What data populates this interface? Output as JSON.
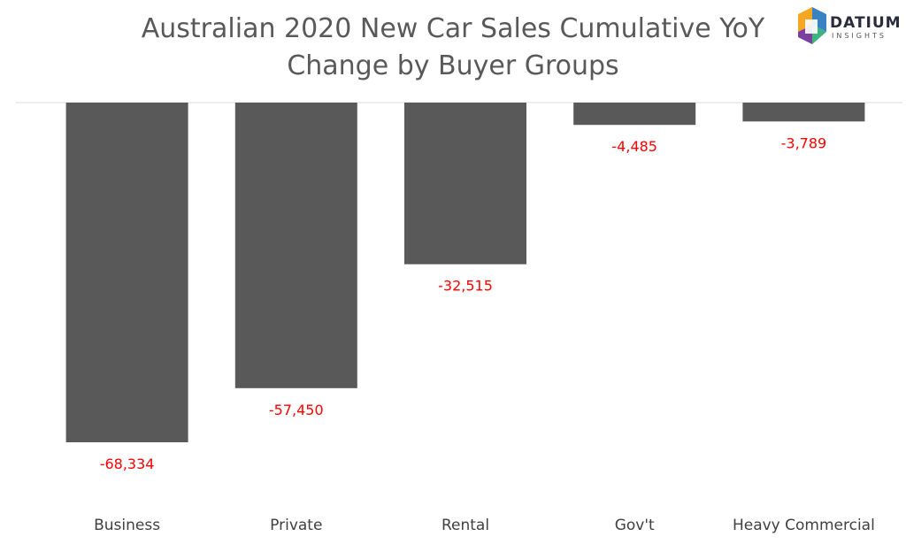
{
  "chart_data": {
    "type": "bar",
    "title_lines": [
      "Australian 2020 New Car Sales Cumulative YoY",
      "Change by Buyer Groups"
    ],
    "categories": [
      "Business",
      "Private",
      "Rental",
      "Gov't",
      "Heavy Commercial"
    ],
    "values": [
      -68334,
      -57450,
      -32515,
      -4485,
      -3789
    ],
    "data_labels": [
      "-68,334",
      "-57,450",
      "-32,515",
      "-4,485",
      "-3,789"
    ],
    "ylim": [
      -70000,
      0
    ],
    "grid": false,
    "legend": "none",
    "colors": {
      "bar": "#595959",
      "data_label": "#ff0000",
      "axis": "#d9d9d9",
      "text": "#595959"
    }
  },
  "logo": {
    "brand": "DATIUM",
    "sub": "INSIGHTS"
  }
}
